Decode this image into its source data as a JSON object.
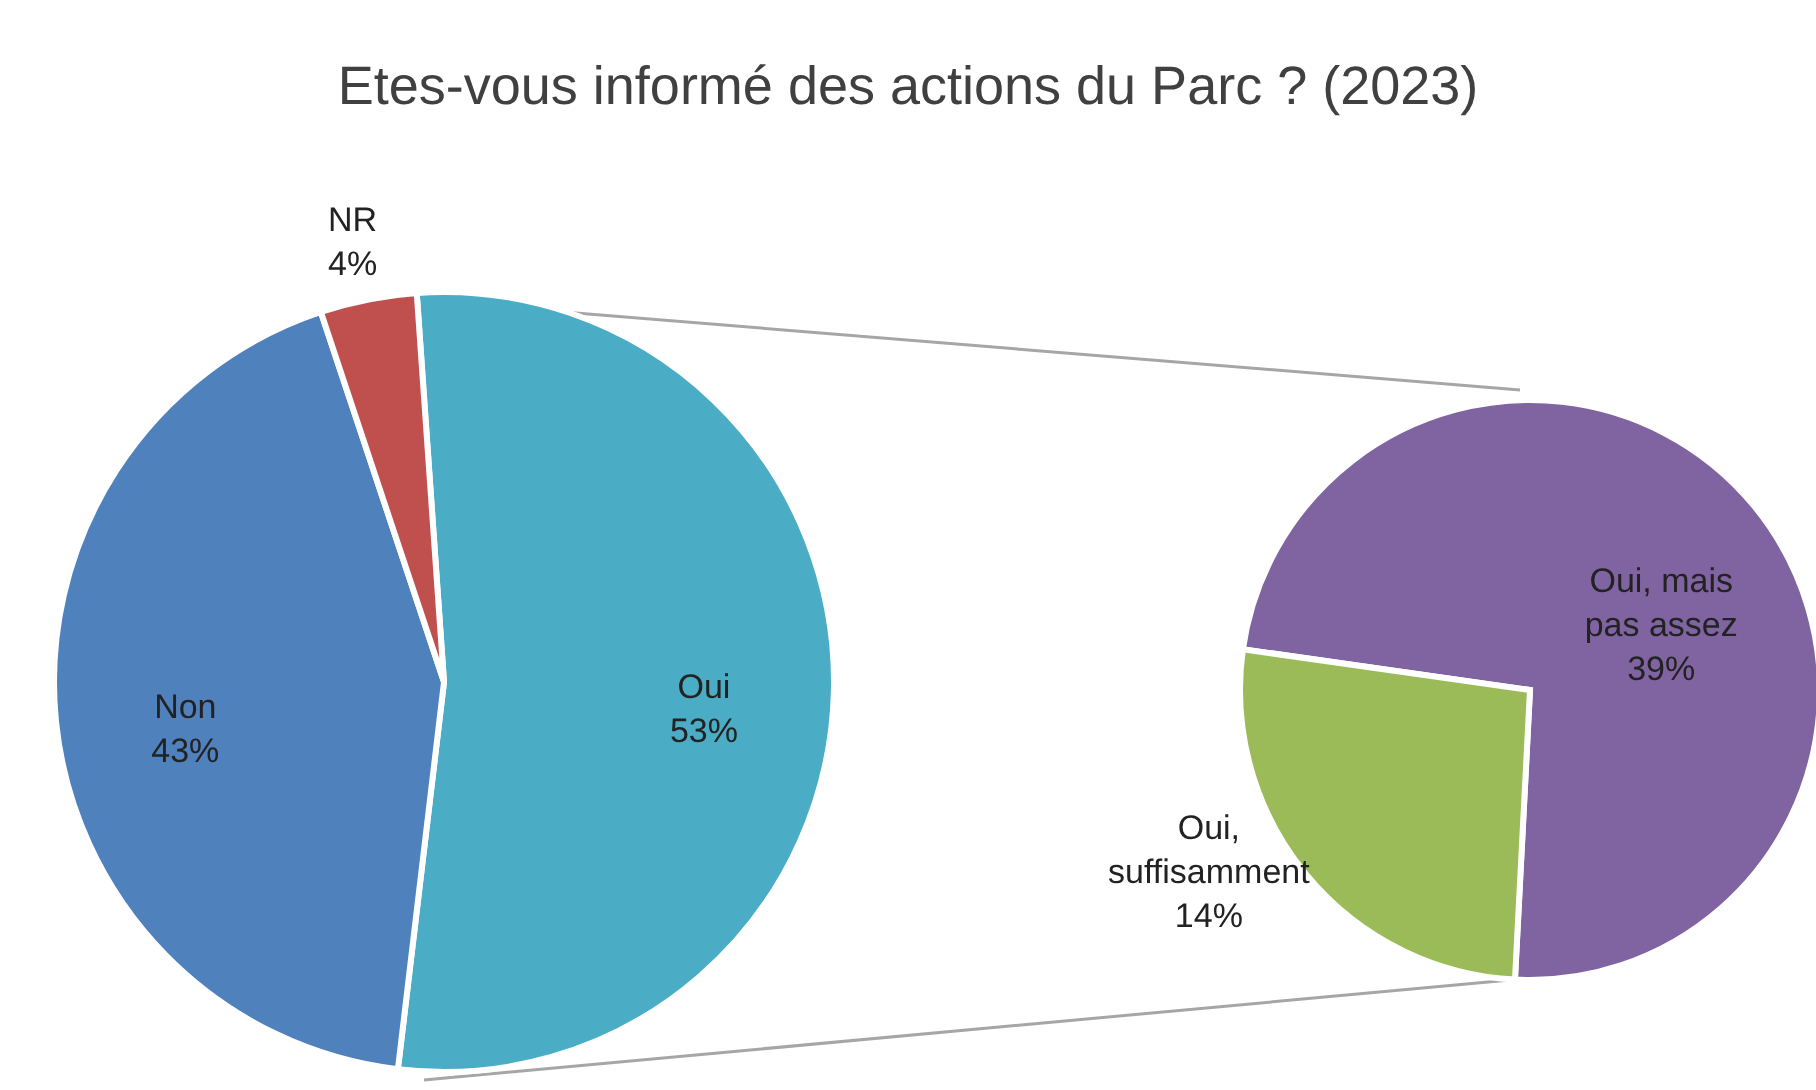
{
  "chart_data": [
    {
      "type": "pie",
      "title": "Etes-vous informé des actions du Parc ? (2023)",
      "categories": [
        "Oui",
        "Non",
        "NR"
      ],
      "values": [
        53,
        43,
        4
      ],
      "colors": [
        "#4bacc6",
        "#4f81bd",
        "#c0504d"
      ],
      "value_labels": [
        "53%",
        "43%",
        "4%"
      ]
    },
    {
      "type": "pie",
      "categories": [
        "Oui, mais pas assez",
        "Oui, suffisamment"
      ],
      "values": [
        39,
        14
      ],
      "colors": [
        "#8064a2",
        "#9bbb59"
      ],
      "value_labels": [
        "39%",
        "14%"
      ]
    }
  ]
}
